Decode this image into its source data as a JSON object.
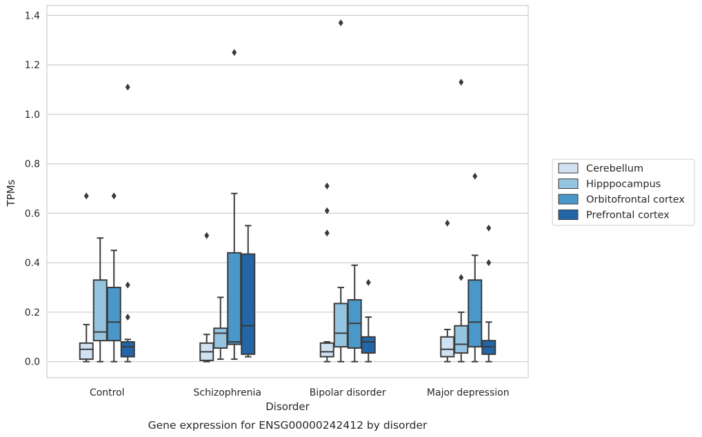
{
  "chart_data": {
    "type": "box",
    "title": "",
    "caption": "Gene expression for ENSG00000242412 by disorder",
    "xlabel": "Disorder",
    "ylabel": "TPMs",
    "ylim": [
      -0.065,
      1.44
    ],
    "yticks": [
      0.0,
      0.2,
      0.4,
      0.6,
      0.8,
      1.0,
      1.2,
      1.4
    ],
    "ytick_labels": [
      "0.0",
      "0.2",
      "0.4",
      "0.6",
      "0.8",
      "1.0",
      "1.2",
      "1.4"
    ],
    "grid": "horizontal",
    "legend_placement": "right",
    "categories": [
      "Control",
      "Schizophrenia",
      "Bipolar disorder",
      "Major depression"
    ],
    "series": [
      {
        "name": "Cerebellum",
        "color": "#d0e1f2",
        "boxes": [
          {
            "whisker_low": 0.0,
            "q1": 0.01,
            "median": 0.05,
            "q3": 0.075,
            "whisker_high": 0.15,
            "outliers": [
              0.67
            ]
          },
          {
            "whisker_low": 0.0,
            "q1": 0.005,
            "median": 0.04,
            "q3": 0.075,
            "whisker_high": 0.11,
            "outliers": [
              0.51
            ]
          },
          {
            "whisker_low": 0.0,
            "q1": 0.02,
            "median": 0.04,
            "q3": 0.075,
            "whisker_high": 0.08,
            "outliers": [
              0.52,
              0.61,
              0.71
            ]
          },
          {
            "whisker_low": 0.0,
            "q1": 0.02,
            "median": 0.05,
            "q3": 0.1,
            "whisker_high": 0.13,
            "outliers": [
              0.56
            ]
          }
        ]
      },
      {
        "name": "Hipppocampus",
        "color": "#94c4df",
        "boxes": [
          {
            "whisker_low": 0.0,
            "q1": 0.085,
            "median": 0.12,
            "q3": 0.33,
            "whisker_high": 0.5,
            "outliers": []
          },
          {
            "whisker_low": 0.01,
            "q1": 0.055,
            "median": 0.115,
            "q3": 0.135,
            "whisker_high": 0.26,
            "outliers": []
          },
          {
            "whisker_low": 0.0,
            "q1": 0.06,
            "median": 0.115,
            "q3": 0.235,
            "whisker_high": 0.3,
            "outliers": [
              1.37
            ]
          },
          {
            "whisker_low": 0.0,
            "q1": 0.035,
            "median": 0.07,
            "q3": 0.145,
            "whisker_high": 0.2,
            "outliers": [
              0.34,
              1.13
            ]
          }
        ]
      },
      {
        "name": "Orbitofrontal cortex",
        "color": "#4a98c9",
        "boxes": [
          {
            "whisker_low": 0.0,
            "q1": 0.085,
            "median": 0.16,
            "q3": 0.3,
            "whisker_high": 0.45,
            "outliers": [
              0.67
            ]
          },
          {
            "whisker_low": 0.01,
            "q1": 0.07,
            "median": 0.08,
            "q3": 0.44,
            "whisker_high": 0.68,
            "outliers": [
              1.25
            ]
          },
          {
            "whisker_low": 0.0,
            "q1": 0.055,
            "median": 0.155,
            "q3": 0.25,
            "whisker_high": 0.39,
            "outliers": []
          },
          {
            "whisker_low": 0.0,
            "q1": 0.06,
            "median": 0.16,
            "q3": 0.33,
            "whisker_high": 0.43,
            "outliers": [
              0.75
            ]
          }
        ]
      },
      {
        "name": "Prefrontal cortex",
        "color": "#2366a8",
        "boxes": [
          {
            "whisker_low": 0.0,
            "q1": 0.02,
            "median": 0.06,
            "q3": 0.08,
            "whisker_high": 0.09,
            "outliers": [
              0.18,
              0.31,
              1.11
            ]
          },
          {
            "whisker_low": 0.02,
            "q1": 0.03,
            "median": 0.145,
            "q3": 0.435,
            "whisker_high": 0.55,
            "outliers": []
          },
          {
            "whisker_low": 0.0,
            "q1": 0.035,
            "median": 0.08,
            "q3": 0.1,
            "whisker_high": 0.18,
            "outliers": [
              0.32
            ]
          },
          {
            "whisker_low": 0.0,
            "q1": 0.03,
            "median": 0.06,
            "q3": 0.085,
            "whisker_high": 0.16,
            "outliers": [
              0.4,
              0.54
            ]
          }
        ]
      }
    ]
  }
}
